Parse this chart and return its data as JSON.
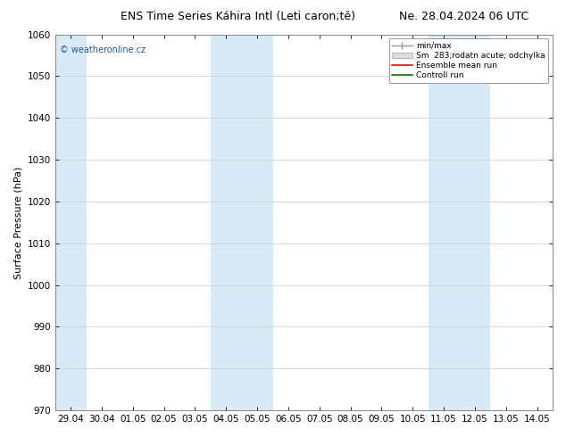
{
  "title_left": "ENS Time Series Káhira Intl (Leti caron;tě)",
  "title_right": "Ne. 28.04.2024 06 UTC",
  "ylabel": "Surface Pressure (hPa)",
  "ylim": [
    970,
    1060
  ],
  "yticks": [
    970,
    980,
    990,
    1000,
    1010,
    1020,
    1030,
    1040,
    1050,
    1060
  ],
  "x_labels": [
    "29.04",
    "30.04",
    "01.05",
    "02.05",
    "03.05",
    "04.05",
    "05.05",
    "06.05",
    "07.05",
    "08.05",
    "09.05",
    "10.05",
    "11.05",
    "12.05",
    "13.05",
    "14.05"
  ],
  "background_color": "#ffffff",
  "band_color": "#d8eaf5",
  "legend_labels": [
    "min/max",
    "Sm  283;rodatn acute; odchylka",
    "Ensemble mean run",
    "Controll run"
  ],
  "legend_colors": [
    "#999999",
    "#cccccc",
    "#ff0000",
    "#007700"
  ],
  "watermark": "© weatheronline.cz",
  "weekend_bands": [
    0,
    5,
    6,
    12,
    13
  ],
  "title_fontsize": 9,
  "tick_fontsize": 7.5,
  "ylabel_fontsize": 8
}
